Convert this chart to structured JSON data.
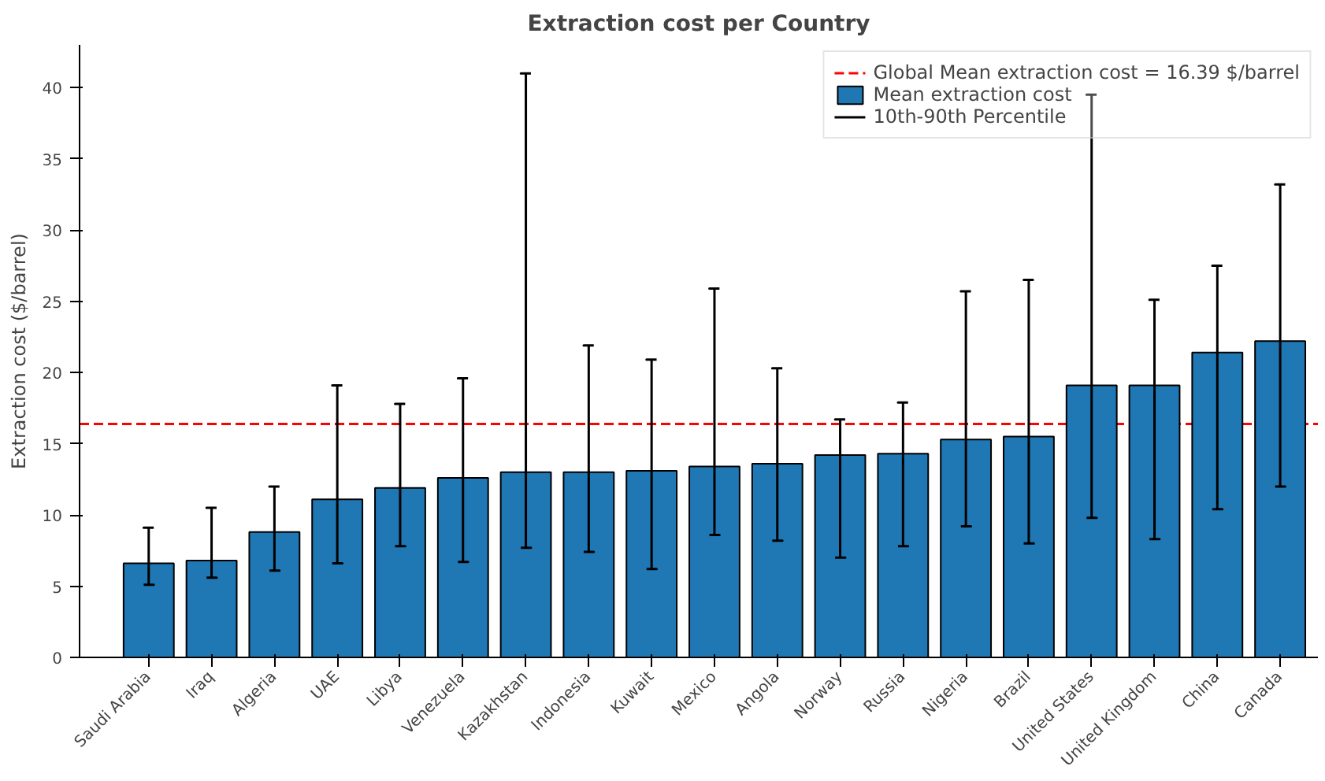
{
  "chart_data": {
    "type": "bar",
    "title": "Extraction cost per Country",
    "ylabel": "Extraction cost ($/barrel)",
    "categories": [
      "Saudi Arabia",
      "Iraq",
      "Algeria",
      "UAE",
      "Libya",
      "Venezuela",
      "Kazakhstan",
      "Indonesia",
      "Kuwait",
      "Mexico",
      "Angola",
      "Norway",
      "Russia",
      "Nigeria",
      "Brazil",
      "United States",
      "United Kingdom",
      "China",
      "Canada"
    ],
    "series": [
      {
        "name": "Mean extraction cost",
        "color": "#1f77b4",
        "values": [
          6.6,
          6.8,
          8.8,
          11.1,
          11.9,
          12.6,
          13.0,
          13.0,
          13.1,
          13.4,
          13.6,
          14.2,
          14.3,
          15.3,
          15.5,
          19.1,
          19.1,
          21.4,
          22.2
        ],
        "errors": [
          [
            5.1,
            9.1
          ],
          [
            5.6,
            10.5
          ],
          [
            6.1,
            12.0
          ],
          [
            6.6,
            19.1
          ],
          [
            7.8,
            17.8
          ],
          [
            6.7,
            19.6
          ],
          [
            7.7,
            41.0
          ],
          [
            7.4,
            21.9
          ],
          [
            6.2,
            20.9
          ],
          [
            8.6,
            25.9
          ],
          [
            8.2,
            20.3
          ],
          [
            7.0,
            16.7
          ],
          [
            7.8,
            17.9
          ],
          [
            9.2,
            25.7
          ],
          [
            8.0,
            26.5
          ],
          [
            9.8,
            39.5
          ],
          [
            8.3,
            25.1
          ],
          [
            10.4,
            27.5
          ],
          [
            12.0,
            33.2
          ]
        ]
      }
    ],
    "annotations": [
      "10th-90th Percentile"
    ],
    "ref_lines": [
      {
        "axis": "y",
        "value": 16.39,
        "label": "Global Mean extraction cost = 16.39 $/barrel",
        "color": "#ff0000",
        "line_style": "dashed"
      }
    ],
    "ylim": [
      0,
      43
    ],
    "yticks": [
      0,
      5,
      10,
      15,
      20,
      25,
      30,
      35,
      40
    ],
    "grid": false,
    "legend": "top right"
  }
}
